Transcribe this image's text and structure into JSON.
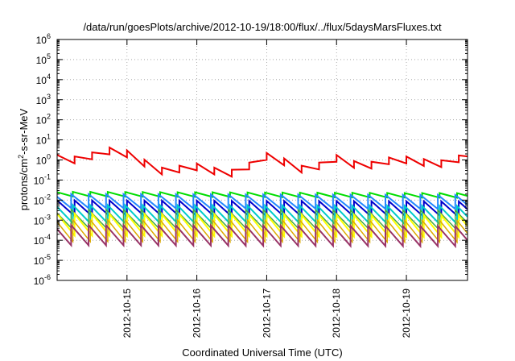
{
  "chart_data": {
    "type": "line",
    "title": "/data/run/goesPlots/archive/2012-10-19/18:00/flux/../flux/5daysMarsFluxes.txt",
    "xlabel": "Coordinated Universal Time (UTC)",
    "ylabel_parts": {
      "base": "protons/cm",
      "sup": "2",
      "rest": "-s-sr-MeV"
    },
    "y_scale": "log",
    "ylim_exp": [
      -6,
      6
    ],
    "x_range": [
      "2012-10-14 00:00",
      "2012-10-19 21:00"
    ],
    "x_ticks": [
      "2012-10-15",
      "2012-10-16",
      "2012-10-17",
      "2012-10-18",
      "2012-10-19"
    ],
    "grid": true,
    "sawtooth_period_hours": 6,
    "series": [
      {
        "color": "#ee0000",
        "width": 2,
        "sawtooth_ratio": 2.2,
        "anchors": [
          [
            "2012-10-14 00:00",
            1.2
          ],
          [
            "2012-10-14 06:00",
            1.0
          ],
          [
            "2012-10-14 12:00",
            1.6
          ],
          [
            "2012-10-14 18:00",
            2.8
          ],
          [
            "2012-10-15 00:00",
            2.0
          ],
          [
            "2012-10-15 06:00",
            0.7
          ],
          [
            "2012-10-15 12:00",
            0.28
          ],
          [
            "2012-10-15 18:00",
            0.35
          ],
          [
            "2012-10-16 00:00",
            0.45
          ],
          [
            "2012-10-16 06:00",
            0.28
          ],
          [
            "2012-10-16 12:00",
            0.22
          ],
          [
            "2012-10-16 18:00",
            0.5
          ],
          [
            "2012-10-17 00:00",
            1.5
          ],
          [
            "2012-10-17 06:00",
            0.8
          ],
          [
            "2012-10-17 12:00",
            0.35
          ],
          [
            "2012-10-17 18:00",
            0.5
          ],
          [
            "2012-10-18 00:00",
            1.2
          ],
          [
            "2012-10-18 06:00",
            0.6
          ],
          [
            "2012-10-18 12:00",
            0.55
          ],
          [
            "2012-10-18 18:00",
            0.9
          ],
          [
            "2012-10-19 00:00",
            1.0
          ],
          [
            "2012-10-19 06:00",
            0.75
          ],
          [
            "2012-10-19 12:00",
            0.65
          ],
          [
            "2012-10-19 21:00",
            1.5
          ]
        ]
      },
      {
        "color": "#00dd00",
        "width": 2,
        "sawtooth_ratio": 1.7,
        "anchors": [
          [
            "2012-10-14 00:00",
            0.02
          ],
          [
            "2012-10-19 21:00",
            0.017
          ]
        ]
      },
      {
        "color": "#2288ff",
        "width": 2,
        "sawtooth_ratio": 5,
        "anchors": [
          [
            "2012-10-14 00:00",
            0.009
          ],
          [
            "2012-10-19 21:00",
            0.008
          ]
        ]
      },
      {
        "color": "#0000cc",
        "width": 2,
        "sawtooth_ratio": 6,
        "anchors": [
          [
            "2012-10-14 00:00",
            0.004
          ],
          [
            "2012-10-19 21:00",
            0.0035
          ]
        ]
      },
      {
        "color": "#00cccc",
        "width": 2,
        "sawtooth_ratio": 8,
        "anchors": [
          [
            "2012-10-14 00:00",
            0.002
          ],
          [
            "2012-10-19 21:00",
            0.0018
          ]
        ]
      },
      {
        "color": "#44aa44",
        "width": 1.5,
        "sawtooth_ratio": 8,
        "anchors": [
          [
            "2012-10-14 00:00",
            0.0012
          ],
          [
            "2012-10-19 21:00",
            0.0011
          ]
        ]
      },
      {
        "color": "#ffff00",
        "width": 2,
        "sawtooth_ratio": 12,
        "anchors": [
          [
            "2012-10-14 00:00",
            0.0006
          ],
          [
            "2012-10-19 21:00",
            0.0005
          ]
        ]
      },
      {
        "color": "#ddaa00",
        "width": 1.5,
        "sawtooth_ratio": 12,
        "anchors": [
          [
            "2012-10-14 00:00",
            0.0003
          ],
          [
            "2012-10-19 21:00",
            0.00028
          ]
        ]
      },
      {
        "color": "#993366",
        "width": 2,
        "sawtooth_ratio": 10,
        "anchors": [
          [
            "2012-10-14 00:00",
            0.00018
          ],
          [
            "2012-10-19 21:00",
            0.00016
          ]
        ]
      }
    ]
  }
}
